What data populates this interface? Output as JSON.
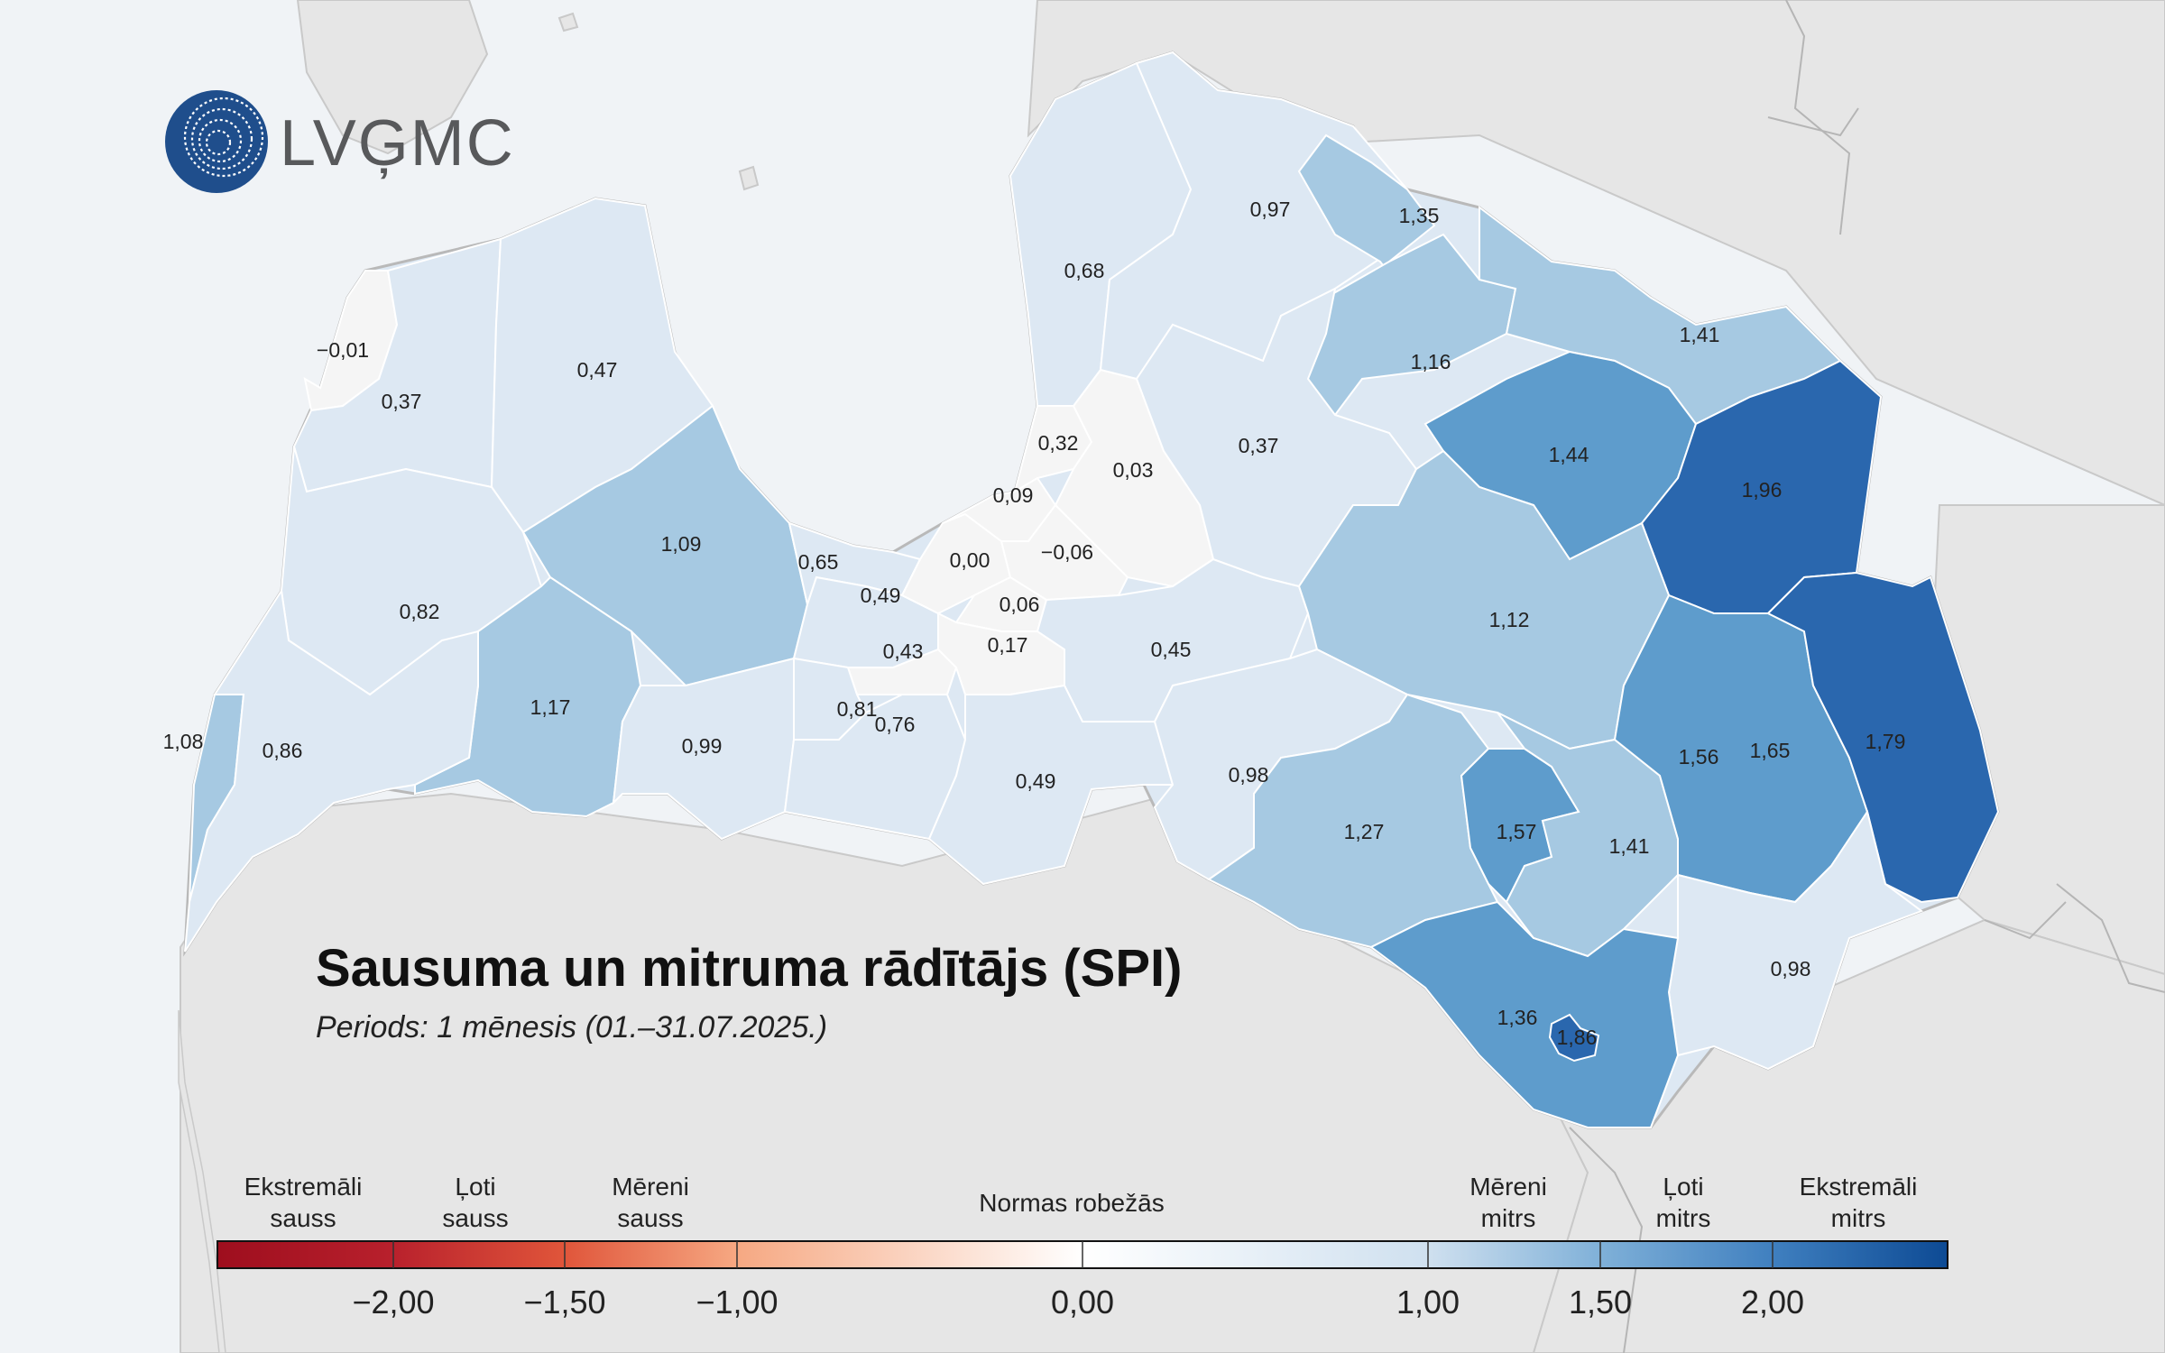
{
  "logo": {
    "text": "LVĢMC"
  },
  "title": "Sausuma un mitruma rādītājs (SPI)",
  "subtitle": "Periods: 1 mēnesis (01.–31.07.2025.)",
  "colors": {
    "sea": "#f0f3f6",
    "neighbor_land": "#e6e6e6",
    "neutral": "#f5f5f5",
    "mild_wet": "#dde8f3",
    "mod_wet": "#a6c9e2",
    "very_wet": "#5e9ccc",
    "ext_wet": "#2a67ae"
  },
  "legend": {
    "categories": [
      {
        "line1": "Ekstremāli",
        "line2": "sauss"
      },
      {
        "line1": "Ļoti",
        "line2": "sauss"
      },
      {
        "line1": "Mēreni",
        "line2": "sauss"
      },
      {
        "line1": "Normas robežās",
        "line2": ""
      },
      {
        "line1": "Mēreni",
        "line2": "mitrs"
      },
      {
        "line1": "Ļoti",
        "line2": "mitrs"
      },
      {
        "line1": "Ekstremāli",
        "line2": "mitrs"
      }
    ],
    "ticks": [
      "−2,00",
      "−1,50",
      "−1,00",
      "0,00",
      "1,00",
      "1,50",
      "2,00"
    ],
    "stops": [
      {
        "value": -2.5,
        "color": "#9e0e1e"
      },
      {
        "value": -2.0,
        "color": "#b8202c"
      },
      {
        "value": -1.5,
        "color": "#e0553a"
      },
      {
        "value": -1.0,
        "color": "#f6a882"
      },
      {
        "value": 0.0,
        "color": "#ffffff"
      },
      {
        "value": 1.0,
        "color": "#cfe0ef"
      },
      {
        "value": 1.5,
        "color": "#7fb0d8"
      },
      {
        "value": 2.0,
        "color": "#3f7fbf"
      },
      {
        "value": 2.5,
        "color": "#0d4a94"
      }
    ]
  },
  "regions": [
    {
      "value": "−0,01",
      "level": "neutral"
    },
    {
      "value": "0,37",
      "level": "mild_wet"
    },
    {
      "value": "0,47",
      "level": "mild_wet"
    },
    {
      "value": "0,82",
      "level": "mild_wet"
    },
    {
      "value": "1,09",
      "level": "mod_wet"
    },
    {
      "value": "1,17",
      "level": "mod_wet"
    },
    {
      "value": "1,08",
      "level": "mod_wet"
    },
    {
      "value": "0,86",
      "level": "mild_wet"
    },
    {
      "value": "0,99",
      "level": "mild_wet"
    },
    {
      "value": "0,65",
      "level": "mild_wet"
    },
    {
      "value": "0,49",
      "level": "mild_wet"
    },
    {
      "value": "0,43",
      "level": "neutral"
    },
    {
      "value": "0,81",
      "level": "mild_wet"
    },
    {
      "value": "0,76",
      "level": "mild_wet"
    },
    {
      "value": "0,00",
      "level": "neutral"
    },
    {
      "value": "0,09",
      "level": "neutral"
    },
    {
      "value": "0,32",
      "level": "neutral"
    },
    {
      "value": "0,03",
      "level": "neutral"
    },
    {
      "value": "−0,06",
      "level": "neutral"
    },
    {
      "value": "0,06",
      "level": "neutral"
    },
    {
      "value": "0,17",
      "level": "neutral"
    },
    {
      "value": "0,45",
      "level": "mild_wet"
    },
    {
      "value": "0,49",
      "level": "mild_wet"
    },
    {
      "value": "0,68",
      "level": "mild_wet"
    },
    {
      "value": "0,97",
      "level": "mild_wet"
    },
    {
      "value": "1,35",
      "level": "mod_wet"
    },
    {
      "value": "1,16",
      "level": "mod_wet"
    },
    {
      "value": "1,41",
      "level": "mod_wet"
    },
    {
      "value": "0,37",
      "level": "mild_wet"
    },
    {
      "value": "1,44",
      "level": "very_wet"
    },
    {
      "value": "1,96",
      "level": "ext_wet"
    },
    {
      "value": "1,12",
      "level": "mod_wet"
    },
    {
      "value": "0,98",
      "level": "mild_wet"
    },
    {
      "value": "1,56",
      "level": "very_wet"
    },
    {
      "value": "1,65",
      "level": "very_wet"
    },
    {
      "value": "1,79",
      "level": "ext_wet"
    },
    {
      "value": "1,27",
      "level": "mod_wet"
    },
    {
      "value": "1,57",
      "level": "very_wet"
    },
    {
      "value": "1,41",
      "level": "mod_wet"
    },
    {
      "value": "0,98",
      "level": "mild_wet"
    },
    {
      "value": "1,36",
      "level": "very_wet"
    },
    {
      "value": "1,86",
      "level": "ext_wet"
    }
  ]
}
